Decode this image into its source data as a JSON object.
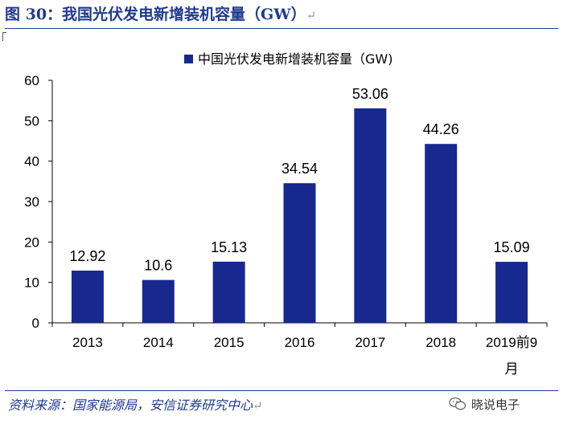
{
  "header": {
    "title": "图 30：我国光伏发电新增装机容量（GW）",
    "return_mark": "↵"
  },
  "footer": {
    "source": "资料来源：国家能源局，安信证券研究中心",
    "return_mark": "↵",
    "watermark": "晓说电子"
  },
  "colors": {
    "bar": "#17298f",
    "title": "#1f3a8f",
    "axis": "#000000"
  },
  "chart_data": {
    "type": "bar",
    "title": "",
    "legend": "中国光伏发电新增装机容量（GW)",
    "legend_position": "top-center",
    "categories": [
      "2013",
      "2014",
      "2015",
      "2016",
      "2017",
      "2018",
      "2019前9月"
    ],
    "category_lines": [
      [
        "2013"
      ],
      [
        "2014"
      ],
      [
        "2015"
      ],
      [
        "2016"
      ],
      [
        "2017"
      ],
      [
        "2018"
      ],
      [
        "2019前9",
        "月"
      ]
    ],
    "values": [
      12.92,
      10.6,
      15.13,
      34.54,
      53.06,
      44.26,
      15.09
    ],
    "value_labels": [
      "12.92",
      "10.6",
      "15.13",
      "34.54",
      "53.06",
      "44.26",
      "15.09"
    ],
    "yticks": [
      0,
      10,
      20,
      30,
      40,
      50,
      60
    ],
    "ylim": [
      0,
      60
    ],
    "xlabel": "",
    "ylabel": "",
    "grid": false
  }
}
